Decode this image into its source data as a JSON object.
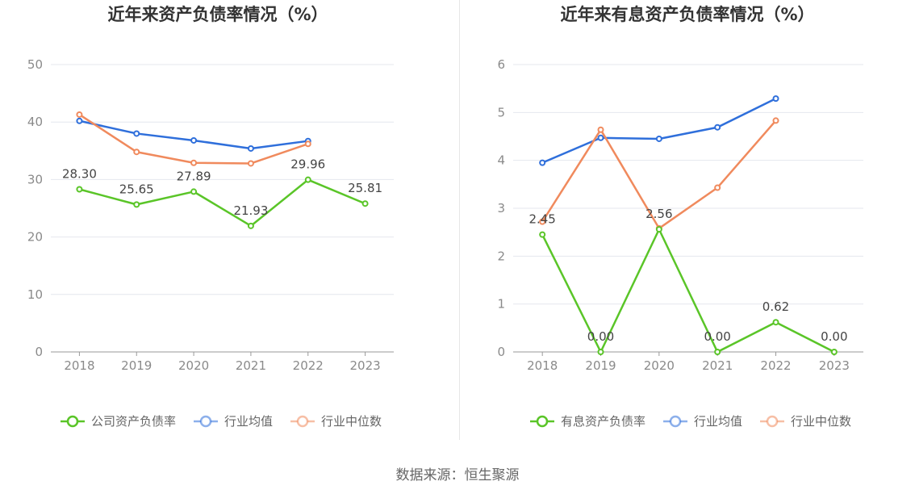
{
  "source": "数据来源：恒生聚源",
  "colors": {
    "company": "#5ac528",
    "avg": "#2f6fdb",
    "median": "#f08a5d",
    "grid": "#e4e7ee",
    "axis": "#999999"
  },
  "chart_data": [
    {
      "type": "line",
      "title": "近年来资产负债率情况（%）",
      "categories": [
        "2018",
        "2019",
        "2020",
        "2021",
        "2022",
        "2023"
      ],
      "yticks": [
        "0",
        "10",
        "20",
        "30",
        "40",
        "50"
      ],
      "ylim": [
        0,
        50
      ],
      "legend": [
        "公司资产负债率",
        "行业均值",
        "行业中位数"
      ],
      "series": [
        {
          "name": "公司资产负债率",
          "key": "company",
          "values": [
            28.3,
            25.65,
            27.89,
            21.93,
            29.96,
            25.81
          ],
          "labels": [
            "28.30",
            "25.65",
            "27.89",
            "21.93",
            "29.96",
            "25.81"
          ]
        },
        {
          "name": "行业均值",
          "key": "avg",
          "values": [
            40.2,
            38.0,
            36.8,
            35.4,
            36.7,
            null
          ]
        },
        {
          "name": "行业中位数",
          "key": "median",
          "values": [
            41.3,
            34.8,
            32.9,
            32.8,
            36.2,
            null
          ]
        }
      ]
    },
    {
      "type": "line",
      "title": "近年来有息资产负债率情况（%）",
      "categories": [
        "2018",
        "2019",
        "2020",
        "2021",
        "2022",
        "2023"
      ],
      "yticks": [
        "0",
        "1",
        "2",
        "3",
        "4",
        "5",
        "6"
      ],
      "ylim": [
        0,
        6
      ],
      "legend": [
        "有息资产负债率",
        "行业均值",
        "行业中位数"
      ],
      "series": [
        {
          "name": "有息资产负债率",
          "key": "company",
          "values": [
            2.45,
            0.0,
            2.56,
            0.0,
            0.62,
            0.0
          ],
          "labels": [
            "2.45",
            "0.00",
            "2.56",
            "0.00",
            "0.62",
            "0.00"
          ]
        },
        {
          "name": "行业均值",
          "key": "avg",
          "values": [
            3.95,
            4.47,
            4.45,
            4.69,
            5.29,
            null
          ]
        },
        {
          "name": "行业中位数",
          "key": "median",
          "values": [
            2.72,
            4.64,
            2.58,
            3.43,
            4.83,
            null
          ]
        }
      ]
    }
  ]
}
